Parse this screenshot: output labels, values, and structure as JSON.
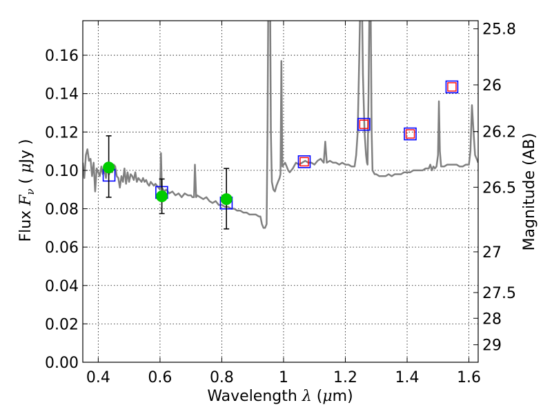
{
  "chart_data": {
    "type": "line",
    "title": "",
    "xlabel": "Wavelength  λ (μm)",
    "xlabel_parts": {
      "prefix": "Wavelength  ",
      "symbol": "λ",
      "suffix_open": " (",
      "unit_mu": "μ",
      "suffix_close": "m)"
    },
    "ylabel": "Flux  Fν  ( μJy )",
    "ylabel_parts": {
      "prefix": "Flux  ",
      "symbol": "F",
      "subscript": "ν",
      "open": "  ( ",
      "unit_mu": "μ",
      "unit": "Jy",
      "close": " )"
    },
    "y2label": "Magnitude (AB)",
    "xlim": [
      0.35,
      1.63
    ],
    "ylim": [
      0.0,
      0.178
    ],
    "grid": true,
    "x_ticks": [
      {
        "value": 0.4,
        "label": "0.4"
      },
      {
        "value": 0.6,
        "label": "0.6"
      },
      {
        "value": 0.8,
        "label": "0.8"
      },
      {
        "value": 1.0,
        "label": "1"
      },
      {
        "value": 1.2,
        "label": "1.2"
      },
      {
        "value": 1.4,
        "label": "1.4"
      },
      {
        "value": 1.6,
        "label": "1.6"
      }
    ],
    "y_ticks": [
      {
        "value": 0.0,
        "label": "0.00"
      },
      {
        "value": 0.02,
        "label": "0.02"
      },
      {
        "value": 0.04,
        "label": "0.04"
      },
      {
        "value": 0.06,
        "label": "0.06"
      },
      {
        "value": 0.08,
        "label": "0.08"
      },
      {
        "value": 0.1,
        "label": "0.10"
      },
      {
        "value": 0.12,
        "label": "0.12"
      },
      {
        "value": 0.14,
        "label": "0.14"
      },
      {
        "value": 0.16,
        "label": "0.16"
      }
    ],
    "y2_ticks": [
      {
        "mag": 25.8,
        "label": "25.8"
      },
      {
        "mag": 26.0,
        "label": "26"
      },
      {
        "mag": 26.2,
        "label": "26.2"
      },
      {
        "mag": 26.5,
        "label": "26.5"
      },
      {
        "mag": 27.0,
        "label": "27"
      },
      {
        "mag": 27.5,
        "label": "27.5"
      },
      {
        "mag": 28.0,
        "label": "28"
      },
      {
        "mag": 29.0,
        "label": "29"
      }
    ],
    "series": [
      {
        "name": "model-spectrum",
        "type": "line",
        "color": "#808080",
        "points": [
          [
            0.35,
            0.104
          ],
          [
            0.355,
            0.096
          ],
          [
            0.36,
            0.108
          ],
          [
            0.365,
            0.111
          ],
          [
            0.37,
            0.105
          ],
          [
            0.375,
            0.106
          ],
          [
            0.38,
            0.097
          ],
          [
            0.385,
            0.104
          ],
          [
            0.39,
            0.089
          ],
          [
            0.395,
            0.101
          ],
          [
            0.4,
            0.099
          ],
          [
            0.405,
            0.097
          ],
          [
            0.41,
            0.102
          ],
          [
            0.415,
            0.098
          ],
          [
            0.42,
            0.1
          ],
          [
            0.425,
            0.096
          ],
          [
            0.43,
            0.103
          ],
          [
            0.435,
            0.098
          ],
          [
            0.44,
            0.101
          ],
          [
            0.445,
            0.099
          ],
          [
            0.45,
            0.103
          ],
          [
            0.455,
            0.102
          ],
          [
            0.46,
            0.097
          ],
          [
            0.465,
            0.096
          ],
          [
            0.47,
            0.091
          ],
          [
            0.475,
            0.097
          ],
          [
            0.48,
            0.094
          ],
          [
            0.485,
            0.101
          ],
          [
            0.49,
            0.093
          ],
          [
            0.495,
            0.099
          ],
          [
            0.5,
            0.094
          ],
          [
            0.505,
            0.098
          ],
          [
            0.51,
            0.097
          ],
          [
            0.515,
            0.095
          ],
          [
            0.52,
            0.099
          ],
          [
            0.525,
            0.094
          ],
          [
            0.53,
            0.096
          ],
          [
            0.535,
            0.095
          ],
          [
            0.54,
            0.094
          ],
          [
            0.545,
            0.096
          ],
          [
            0.55,
            0.094
          ],
          [
            0.555,
            0.095
          ],
          [
            0.56,
            0.093
          ],
          [
            0.565,
            0.092
          ],
          [
            0.57,
            0.094
          ],
          [
            0.575,
            0.093
          ],
          [
            0.58,
            0.092
          ],
          [
            0.585,
            0.093
          ],
          [
            0.59,
            0.092
          ],
          [
            0.595,
            0.091
          ],
          [
            0.6,
            0.09
          ],
          [
            0.603,
            0.109
          ],
          [
            0.606,
            0.091
          ],
          [
            0.61,
            0.09
          ],
          [
            0.615,
            0.089
          ],
          [
            0.62,
            0.09
          ],
          [
            0.63,
            0.088
          ],
          [
            0.64,
            0.089
          ],
          [
            0.65,
            0.087
          ],
          [
            0.66,
            0.088
          ],
          [
            0.67,
            0.086
          ],
          [
            0.68,
            0.088
          ],
          [
            0.69,
            0.087
          ],
          [
            0.7,
            0.087
          ],
          [
            0.705,
            0.086
          ],
          [
            0.71,
            0.086
          ],
          [
            0.713,
            0.103
          ],
          [
            0.717,
            0.086
          ],
          [
            0.72,
            0.087
          ],
          [
            0.73,
            0.086
          ],
          [
            0.74,
            0.085
          ],
          [
            0.75,
            0.086
          ],
          [
            0.76,
            0.084
          ],
          [
            0.77,
            0.083
          ],
          [
            0.78,
            0.084
          ],
          [
            0.79,
            0.082
          ],
          [
            0.8,
            0.082
          ],
          [
            0.81,
            0.081
          ],
          [
            0.82,
            0.081
          ],
          [
            0.83,
            0.08
          ],
          [
            0.84,
            0.08
          ],
          [
            0.85,
            0.079
          ],
          [
            0.86,
            0.079
          ],
          [
            0.87,
            0.078
          ],
          [
            0.88,
            0.078
          ],
          [
            0.89,
            0.077
          ],
          [
            0.9,
            0.077
          ],
          [
            0.91,
            0.077
          ],
          [
            0.92,
            0.076
          ],
          [
            0.925,
            0.076
          ],
          [
            0.93,
            0.072
          ],
          [
            0.935,
            0.07
          ],
          [
            0.94,
            0.07
          ],
          [
            0.945,
            0.072
          ],
          [
            0.948,
            0.12
          ],
          [
            0.951,
            0.2
          ],
          [
            0.956,
            0.2
          ],
          [
            0.959,
            0.12
          ],
          [
            0.962,
            0.094
          ],
          [
            0.967,
            0.09
          ],
          [
            0.972,
            0.089
          ],
          [
            0.977,
            0.092
          ],
          [
            0.982,
            0.094
          ],
          [
            0.987,
            0.096
          ],
          [
            0.99,
            0.098
          ],
          [
            0.993,
            0.157
          ],
          [
            0.996,
            0.102
          ],
          [
            1.0,
            0.103
          ],
          [
            1.005,
            0.104
          ],
          [
            1.01,
            0.102
          ],
          [
            1.015,
            0.1
          ],
          [
            1.02,
            0.099
          ],
          [
            1.03,
            0.101
          ],
          [
            1.04,
            0.104
          ],
          [
            1.05,
            0.103
          ],
          [
            1.06,
            0.104
          ],
          [
            1.07,
            0.105
          ],
          [
            1.08,
            0.104
          ],
          [
            1.09,
            0.104
          ],
          [
            1.1,
            0.103
          ],
          [
            1.11,
            0.105
          ],
          [
            1.12,
            0.106
          ],
          [
            1.125,
            0.105
          ],
          [
            1.13,
            0.104
          ],
          [
            1.135,
            0.115
          ],
          [
            1.14,
            0.104
          ],
          [
            1.15,
            0.105
          ],
          [
            1.16,
            0.104
          ],
          [
            1.17,
            0.104
          ],
          [
            1.18,
            0.103
          ],
          [
            1.19,
            0.104
          ],
          [
            1.2,
            0.103
          ],
          [
            1.21,
            0.103
          ],
          [
            1.22,
            0.102
          ],
          [
            1.23,
            0.102
          ],
          [
            1.235,
            0.108
          ],
          [
            1.24,
            0.12
          ],
          [
            1.245,
            0.16
          ],
          [
            1.248,
            0.185
          ],
          [
            1.254,
            0.185
          ],
          [
            1.257,
            0.15
          ],
          [
            1.262,
            0.12
          ],
          [
            1.267,
            0.108
          ],
          [
            1.27,
            0.104
          ],
          [
            1.272,
            0.103
          ],
          [
            1.275,
            0.14
          ],
          [
            1.278,
            0.185
          ],
          [
            1.282,
            0.185
          ],
          [
            1.285,
            0.12
          ],
          [
            1.288,
            0.1
          ],
          [
            1.295,
            0.098
          ],
          [
            1.3,
            0.098
          ],
          [
            1.31,
            0.097
          ],
          [
            1.32,
            0.097
          ],
          [
            1.33,
            0.097
          ],
          [
            1.34,
            0.098
          ],
          [
            1.35,
            0.097
          ],
          [
            1.36,
            0.098
          ],
          [
            1.37,
            0.098
          ],
          [
            1.38,
            0.098
          ],
          [
            1.39,
            0.099
          ],
          [
            1.4,
            0.099
          ],
          [
            1.41,
            0.099
          ],
          [
            1.42,
            0.1
          ],
          [
            1.43,
            0.1
          ],
          [
            1.44,
            0.1
          ],
          [
            1.45,
            0.1
          ],
          [
            1.46,
            0.101
          ],
          [
            1.47,
            0.101
          ],
          [
            1.475,
            0.103
          ],
          [
            1.48,
            0.1
          ],
          [
            1.485,
            0.102
          ],
          [
            1.49,
            0.101
          ],
          [
            1.495,
            0.102
          ],
          [
            1.5,
            0.108
          ],
          [
            1.503,
            0.136
          ],
          [
            1.506,
            0.11
          ],
          [
            1.51,
            0.102
          ],
          [
            1.52,
            0.102
          ],
          [
            1.53,
            0.103
          ],
          [
            1.54,
            0.103
          ],
          [
            1.55,
            0.103
          ],
          [
            1.56,
            0.103
          ],
          [
            1.57,
            0.102
          ],
          [
            1.58,
            0.102
          ],
          [
            1.59,
            0.103
          ],
          [
            1.6,
            0.103
          ],
          [
            1.605,
            0.11
          ],
          [
            1.61,
            0.134
          ],
          [
            1.615,
            0.12
          ],
          [
            1.62,
            0.108
          ],
          [
            1.625,
            0.106
          ],
          [
            1.63,
            0.104
          ]
        ]
      },
      {
        "name": "observed-photometry",
        "type": "scatter",
        "color": "#00cc00",
        "points": [
          {
            "x": 0.434,
            "y": 0.1015,
            "yerr_low": 0.0155,
            "yerr_high": 0.0165
          },
          {
            "x": 0.606,
            "y": 0.0865,
            "yerr_low": 0.009,
            "yerr_high": 0.009
          },
          {
            "x": 0.815,
            "y": 0.085,
            "yerr_low": 0.0155,
            "yerr_high": 0.016
          }
        ]
      },
      {
        "name": "model-photometry",
        "type": "scatter",
        "color": "#0000ff",
        "points": [
          {
            "x": 0.435,
            "y": 0.0975
          },
          {
            "x": 0.6055,
            "y": 0.0885
          },
          {
            "x": 0.8145,
            "y": 0.083
          },
          {
            "x": 1.067,
            "y": 0.1045
          },
          {
            "x": 1.26,
            "y": 0.124
          },
          {
            "x": 1.41,
            "y": 0.119
          },
          {
            "x": 1.545,
            "y": 0.1435
          }
        ]
      },
      {
        "name": "model-photometry-inner",
        "type": "scatter",
        "color": "#ff0000",
        "points": [
          {
            "x": 1.067,
            "y": 0.1045
          },
          {
            "x": 1.26,
            "y": 0.124
          },
          {
            "x": 1.41,
            "y": 0.119
          },
          {
            "x": 1.545,
            "y": 0.1435
          }
        ]
      }
    ]
  }
}
